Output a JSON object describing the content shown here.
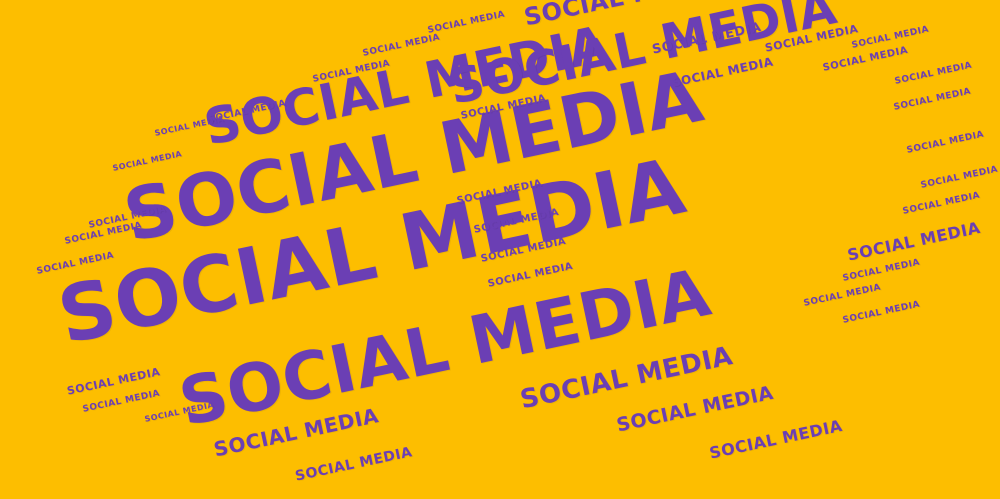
{
  "background": "#FDBE00",
  "text_color": "#6B3FB4",
  "phrase": "SOCIAL MEDIA",
  "words": [
    {
      "text": "SOCIAL MEDIA"
    },
    {
      "text": "SOCIAL MEDIA"
    },
    {
      "text": "SOCIAL MEDIA"
    },
    {
      "text": "SOCIAL MEDIA"
    },
    {
      "text": "SOCIAL MEDIA"
    },
    {
      "text": "SOCIAL MEDIA"
    },
    {
      "text": "SOCIAL MEDIA"
    },
    {
      "text": "SOCIAL MEDIA"
    },
    {
      "text": "SOCIAL MEDIA"
    },
    {
      "text": "SOCIAL MEDIA"
    },
    {
      "text": "SOCIAL MEDIA"
    },
    {
      "text": "SOCIAL MEDIA"
    },
    {
      "text": "SOCIAL MEDIA"
    },
    {
      "text": "SOCIAL MEDIA"
    },
    {
      "text": "SOCIAL MEDIA"
    },
    {
      "text": "SOCIAL MEDIA"
    },
    {
      "text": "SOCIAL MEDIA"
    },
    {
      "text": "SOCIAL MEDIA"
    },
    {
      "text": "SOCIAL MEDIA"
    },
    {
      "text": "SOCIAL MEDIA"
    },
    {
      "text": "SOCIAL MEDIA"
    },
    {
      "text": "SOCIAL MEDIA"
    },
    {
      "text": "SOCIAL MEDIA"
    },
    {
      "text": "SOCIAL MEDIA"
    },
    {
      "text": "SOCIAL MEDIA"
    },
    {
      "text": "SOCIAL MEDIA"
    },
    {
      "text": "SOCIAL MEDIA"
    },
    {
      "text": "SOCIAL MEDIA"
    },
    {
      "text": "SOCIAL MEDIA"
    },
    {
      "text": "SOCIAL MEDIA"
    },
    {
      "text": "SOCIAL MEDIA"
    },
    {
      "text": "SOCIAL MEDIA"
    },
    {
      "text": "SOCIAL MEDIA"
    },
    {
      "text": "SOCIAL MEDIA"
    },
    {
      "text": "SOCIAL MEDIA"
    },
    {
      "text": "SOCIAL MEDIA"
    },
    {
      "text": "SOCIAL MEDIA"
    },
    {
      "text": "SOCIAL MEDIA"
    },
    {
      "text": "SOCIAL MEDIA"
    },
    {
      "text": "SOCIAL MEDIA"
    },
    {
      "text": "SOCIAL MEDIA"
    },
    {
      "text": "SOCIAL MEDIA"
    }
  ]
}
